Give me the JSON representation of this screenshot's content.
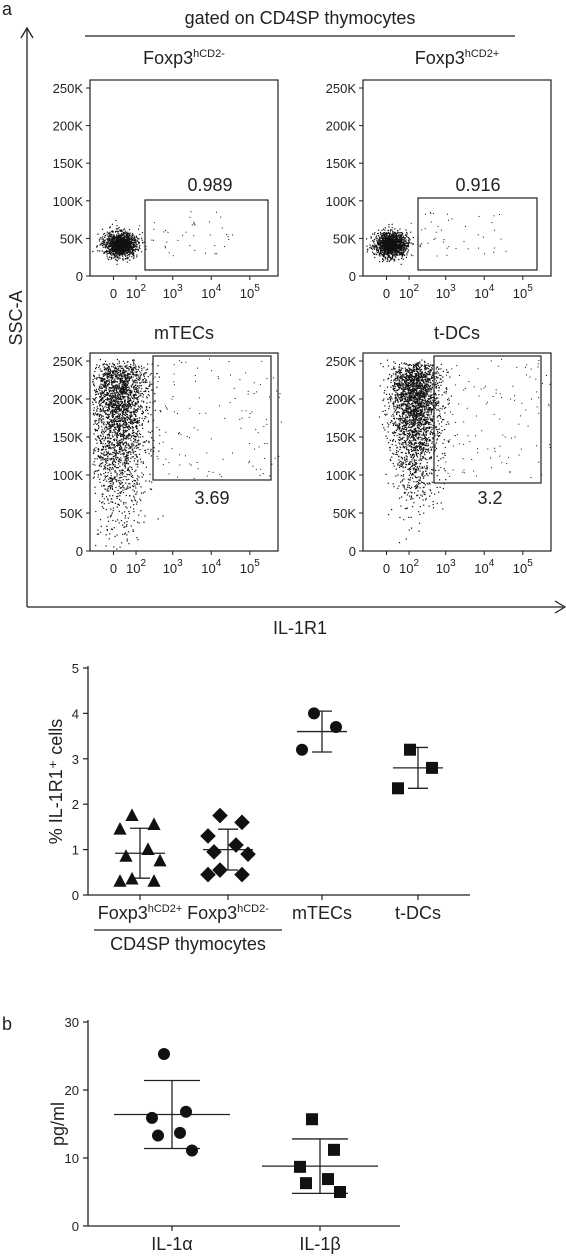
{
  "panel_a_label": "a",
  "panel_b_label": "b",
  "gating_title": "gated on CD4SP thymocytes",
  "flow": {
    "y_axis_label": "SSC-A",
    "x_axis_label": "IL-1R1",
    "y_ticks": [
      "250K",
      "200K",
      "150K",
      "100K",
      "50K",
      "0"
    ],
    "x_ticks": [
      {
        "base": "0",
        "exp": ""
      },
      {
        "base": "10",
        "exp": "2"
      },
      {
        "base": "10",
        "exp": "3"
      },
      {
        "base": "10",
        "exp": "4"
      },
      {
        "base": "10",
        "exp": "5"
      }
    ],
    "plots": [
      {
        "title_base": "Foxp3",
        "title_sup": "hCD2-",
        "gate_value": "0.989"
      },
      {
        "title_base": "Foxp3",
        "title_sup": "hCD2+",
        "gate_value": "0.916"
      },
      {
        "title_base": "mTECs",
        "title_sup": "",
        "gate_value": "3.69"
      },
      {
        "title_base": "t-DCs",
        "title_sup": "",
        "gate_value": "3.2"
      }
    ]
  },
  "chart_data": [
    {
      "type": "scatter",
      "ylabel": "% IL-1R1⁺ cells",
      "ylim": [
        0,
        5
      ],
      "y_ticks": [
        0,
        1,
        2,
        3,
        4,
        5
      ],
      "categories": [
        {
          "base": "Foxp3",
          "sup": "hCD2+"
        },
        {
          "base": "Foxp3",
          "sup": "hCD2-"
        },
        {
          "base": "mTECs",
          "sup": ""
        },
        {
          "base": "t-DCs",
          "sup": ""
        }
      ],
      "group_label": "CD4SP thymocytes",
      "series": [
        {
          "marker": "triangle",
          "values": [
            1.75,
            1.55,
            1.45,
            1.0,
            0.85,
            0.75,
            0.35,
            0.3,
            0.3
          ],
          "mean": 0.92,
          "sd": 0.55
        },
        {
          "marker": "diamond",
          "values": [
            1.75,
            1.6,
            1.3,
            1.1,
            0.95,
            0.9,
            0.55,
            0.45,
            0.45
          ],
          "mean": 1.0,
          "sd": 0.45
        },
        {
          "marker": "circle",
          "values": [
            4.0,
            3.7,
            3.2
          ],
          "mean": 3.6,
          "sd": 0.45
        },
        {
          "marker": "square",
          "values": [
            3.2,
            2.8,
            2.35
          ],
          "mean": 2.8,
          "sd": 0.45
        }
      ]
    },
    {
      "type": "scatter",
      "ylabel": "pg/ml",
      "ylim": [
        0,
        30
      ],
      "y_ticks": [
        0,
        10,
        20,
        30
      ],
      "categories": [
        {
          "base": "IL-1α",
          "sup": ""
        },
        {
          "base": "IL-1β",
          "sup": ""
        }
      ],
      "series": [
        {
          "marker": "circle",
          "values": [
            25.3,
            16.8,
            15.9,
            13.7,
            13.3,
            11.1
          ],
          "mean": 16.4,
          "sd": 5.0
        },
        {
          "marker": "square",
          "values": [
            15.7,
            11.2,
            8.7,
            6.9,
            6.3,
            5.0
          ],
          "mean": 8.8,
          "sd": 4.0
        }
      ]
    }
  ]
}
